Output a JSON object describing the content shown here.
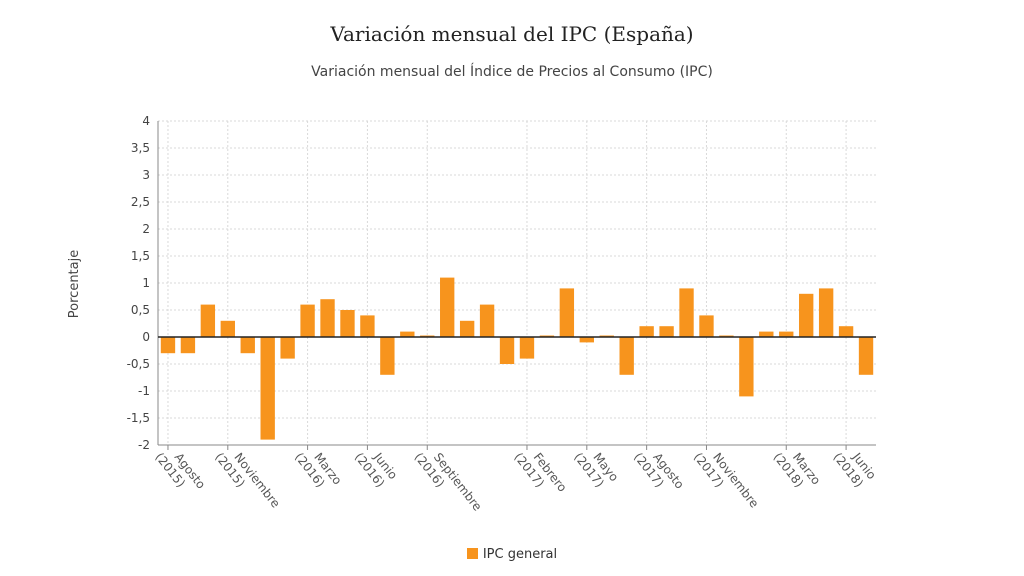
{
  "chart_data": {
    "type": "bar",
    "title": "Variación mensual del IPC (España)",
    "subtitle": "Variación mensual del Índice de Precios al Consumo (IPC)",
    "xlabel": "",
    "ylabel": "Porcentaje",
    "ylim": [
      -2,
      4
    ],
    "yticks": [
      "4",
      "3,5",
      "3",
      "2,5",
      "2",
      "1,5",
      "1",
      "0,5",
      "0",
      "-0,5",
      "-1",
      "-1,5",
      "-2"
    ],
    "grid": true,
    "legend": "bottom-center",
    "series": [
      {
        "name": "IPC general",
        "color": "#f7941d",
        "values": [
          -0.3,
          -0.3,
          0.6,
          0.3,
          -0.3,
          -1.9,
          -0.4,
          0.6,
          0.7,
          0.5,
          0.4,
          -0.7,
          0.1,
          0.0,
          1.1,
          0.3,
          0.6,
          -0.5,
          -0.4,
          0.0,
          0.9,
          -0.1,
          0.0,
          -0.7,
          0.2,
          0.2,
          0.9,
          0.4,
          0.0,
          -1.1,
          0.1,
          0.1,
          0.8,
          0.9,
          0.2,
          -0.7
        ]
      }
    ],
    "x_labels": [
      {
        "index": 0,
        "line1": "Agosto",
        "line2": "(2015)"
      },
      {
        "index": 3,
        "line1": "Noviembre",
        "line2": "(2015)"
      },
      {
        "index": 7,
        "line1": "Marzo",
        "line2": "(2016)"
      },
      {
        "index": 10,
        "line1": "Junio",
        "line2": "(2016)"
      },
      {
        "index": 13,
        "line1": "Septiembre",
        "line2": "(2016)"
      },
      {
        "index": 18,
        "line1": "Febrero",
        "line2": "(2017)"
      },
      {
        "index": 21,
        "line1": "Mayo",
        "line2": "(2017)"
      },
      {
        "index": 24,
        "line1": "Agosto",
        "line2": "(2017)"
      },
      {
        "index": 27,
        "line1": "Noviembre",
        "line2": "(2017)"
      },
      {
        "index": 31,
        "line1": "Marzo",
        "line2": "(2018)"
      },
      {
        "index": 34,
        "line1": "Junio",
        "line2": "(2018)"
      }
    ]
  }
}
